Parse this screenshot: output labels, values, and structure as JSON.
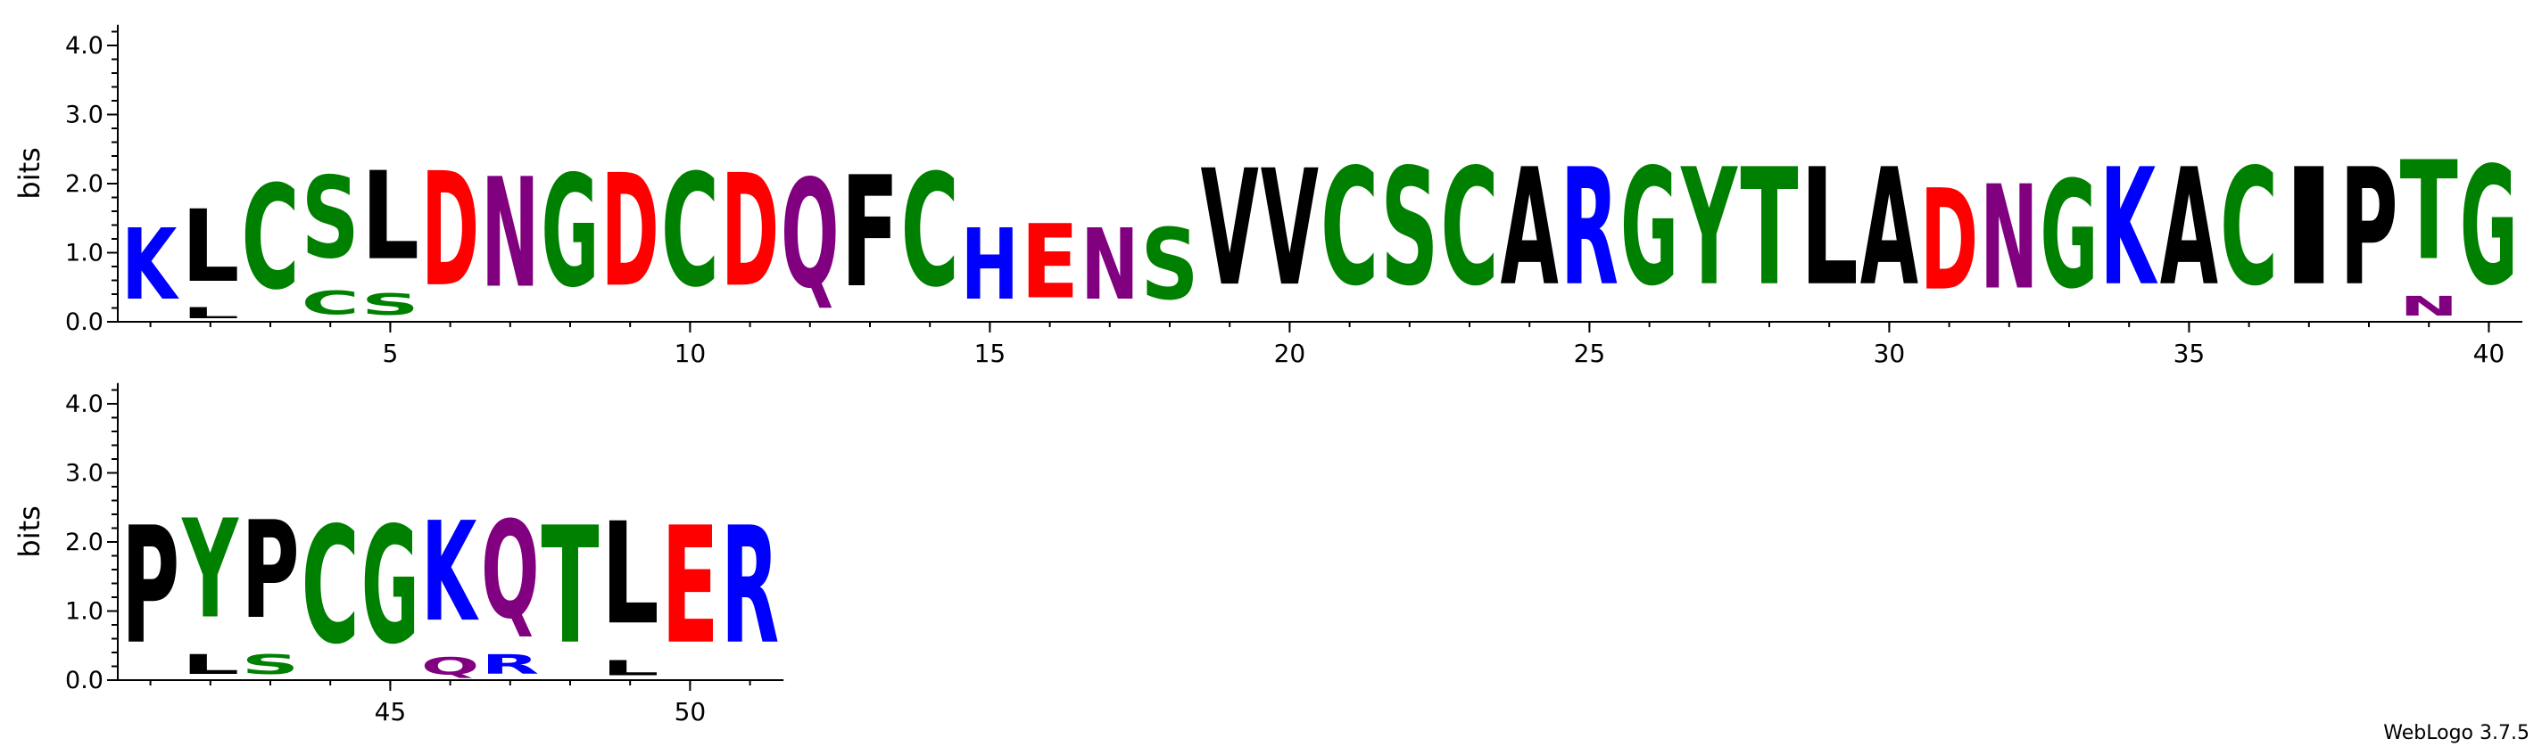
{
  "chart_data": {
    "type": "sequence-logo",
    "ylabel": "bits",
    "ylim": [
      0,
      4.3
    ],
    "yticks": [
      "0.0",
      "1.0",
      "2.0",
      "3.0",
      "4.0"
    ],
    "colors": {
      "C": "#008000",
      "G": "#008000",
      "S": "#008000",
      "T": "#008000",
      "Y": "#008000",
      "N": "#800080",
      "Q": "#800080",
      "D": "#ff0000",
      "E": "#ff0000",
      "K": "#0000ff",
      "R": "#0000ff",
      "H": "#0000ff",
      "L": "#000000",
      "A": "#000000",
      "F": "#000000",
      "V": "#000000",
      "I": "#000000",
      "P": "#000000",
      "W": "#000000",
      "M": "#000000"
    },
    "rows": [
      {
        "start": 1,
        "end": 40,
        "xticks": [
          "5",
          "10",
          "15",
          "20",
          "25",
          "30",
          "35",
          "40"
        ],
        "positions": [
          {
            "pos": 1,
            "letters": [
              {
                "l": "K",
                "h": 1.65
              }
            ]
          },
          {
            "pos": 2,
            "letters": [
              {
                "l": "L",
                "h": 0.25
              },
              {
                "l": "L",
                "h": 1.68
              }
            ]
          },
          {
            "pos": 3,
            "letters": [
              {
                "l": "C",
                "h": 2.42
              }
            ]
          },
          {
            "pos": 4,
            "letters": [
              {
                "l": "C",
                "h": 0.55
              },
              {
                "l": "S",
                "h": 1.9
              }
            ]
          },
          {
            "pos": 5,
            "letters": [
              {
                "l": "S",
                "h": 0.5
              },
              {
                "l": "L",
                "h": 2.05
              }
            ]
          },
          {
            "pos": 6,
            "letters": [
              {
                "l": "D",
                "h": 2.65
              }
            ]
          },
          {
            "pos": 7,
            "letters": [
              {
                "l": "N",
                "h": 2.55
              }
            ]
          },
          {
            "pos": 8,
            "letters": [
              {
                "l": "G",
                "h": 2.6
              }
            ]
          },
          {
            "pos": 9,
            "letters": [
              {
                "l": "D",
                "h": 2.62
              }
            ]
          },
          {
            "pos": 10,
            "letters": [
              {
                "l": "C",
                "h": 2.62
              }
            ]
          },
          {
            "pos": 11,
            "letters": [
              {
                "l": "D",
                "h": 2.62
              }
            ]
          },
          {
            "pos": 12,
            "letters": [
              {
                "l": "Q",
                "h": 2.52
              }
            ]
          },
          {
            "pos": 13,
            "letters": [
              {
                "l": "F",
                "h": 2.58
              }
            ]
          },
          {
            "pos": 14,
            "letters": [
              {
                "l": "C",
                "h": 2.62
              }
            ]
          },
          {
            "pos": 15,
            "letters": [
              {
                "l": "H",
                "h": 1.65
              }
            ]
          },
          {
            "pos": 16,
            "letters": [
              {
                "l": "E",
                "h": 1.72
              }
            ]
          },
          {
            "pos": 17,
            "letters": [
              {
                "l": "N",
                "h": 1.65
              }
            ]
          },
          {
            "pos": 18,
            "letters": [
              {
                "l": "S",
                "h": 1.65
              }
            ]
          },
          {
            "pos": 19,
            "letters": [
              {
                "l": "V",
                "h": 2.7
              }
            ]
          },
          {
            "pos": 20,
            "letters": [
              {
                "l": "V",
                "h": 2.7
              }
            ]
          },
          {
            "pos": 21,
            "letters": [
              {
                "l": "C",
                "h": 2.72
              }
            ]
          },
          {
            "pos": 22,
            "letters": [
              {
                "l": "S",
                "h": 2.72
              }
            ]
          },
          {
            "pos": 23,
            "letters": [
              {
                "l": "C",
                "h": 2.72
              }
            ]
          },
          {
            "pos": 24,
            "letters": [
              {
                "l": "A",
                "h": 2.72
              }
            ]
          },
          {
            "pos": 25,
            "letters": [
              {
                "l": "R",
                "h": 2.72
              }
            ]
          },
          {
            "pos": 26,
            "letters": [
              {
                "l": "G",
                "h": 2.72
              }
            ]
          },
          {
            "pos": 27,
            "letters": [
              {
                "l": "Y",
                "h": 2.72
              }
            ]
          },
          {
            "pos": 28,
            "letters": [
              {
                "l": "T",
                "h": 2.72
              }
            ]
          },
          {
            "pos": 29,
            "letters": [
              {
                "l": "L",
                "h": 2.72
              }
            ]
          },
          {
            "pos": 30,
            "letters": [
              {
                "l": "A",
                "h": 2.72
              }
            ]
          },
          {
            "pos": 31,
            "letters": [
              {
                "l": "D",
                "h": 2.35
              }
            ]
          },
          {
            "pos": 32,
            "letters": [
              {
                "l": "N",
                "h": 2.42
              }
            ]
          },
          {
            "pos": 33,
            "letters": [
              {
                "l": "G",
                "h": 2.5
              }
            ]
          },
          {
            "pos": 34,
            "letters": [
              {
                "l": "K",
                "h": 2.72
              }
            ]
          },
          {
            "pos": 35,
            "letters": [
              {
                "l": "A",
                "h": 2.72
              }
            ]
          },
          {
            "pos": 36,
            "letters": [
              {
                "l": "C",
                "h": 2.72
              }
            ]
          },
          {
            "pos": 37,
            "letters": [
              {
                "l": "I",
                "h": 2.72
              }
            ]
          },
          {
            "pos": 38,
            "letters": [
              {
                "l": "P",
                "h": 2.72
              }
            ]
          },
          {
            "pos": 39,
            "letters": [
              {
                "l": "N",
                "h": 0.45
              },
              {
                "l": "T",
                "h": 2.3
              }
            ]
          },
          {
            "pos": 40,
            "letters": [
              {
                "l": "G",
                "h": 2.75
              }
            ]
          }
        ]
      },
      {
        "start": 41,
        "end": 51,
        "xticks": [
          "45",
          "50"
        ],
        "positions": [
          {
            "pos": 41,
            "letters": [
              {
                "l": "P",
                "h": 2.72
              }
            ]
          },
          {
            "pos": 42,
            "letters": [
              {
                "l": "L",
                "h": 0.45
              },
              {
                "l": "Y",
                "h": 2.3
              }
            ]
          },
          {
            "pos": 43,
            "letters": [
              {
                "l": "S",
                "h": 0.45
              },
              {
                "l": "P",
                "h": 2.27
              }
            ]
          },
          {
            "pos": 44,
            "letters": [
              {
                "l": "C",
                "h": 2.72
              }
            ]
          },
          {
            "pos": 45,
            "letters": [
              {
                "l": "G",
                "h": 2.72
              }
            ]
          },
          {
            "pos": 46,
            "letters": [
              {
                "l": "Q",
                "h": 0.4
              },
              {
                "l": "K",
                "h": 2.32
              }
            ]
          },
          {
            "pos": 47,
            "letters": [
              {
                "l": "R",
                "h": 0.45
              },
              {
                "l": "Q",
                "h": 2.27
              }
            ]
          },
          {
            "pos": 48,
            "letters": [
              {
                "l": "T",
                "h": 2.72
              }
            ]
          },
          {
            "pos": 49,
            "letters": [
              {
                "l": "L",
                "h": 0.35
              },
              {
                "l": "L",
                "h": 2.37
              }
            ]
          },
          {
            "pos": 50,
            "letters": [
              {
                "l": "E",
                "h": 2.72
              }
            ]
          },
          {
            "pos": 51,
            "letters": [
              {
                "l": "R",
                "h": 2.72
              }
            ]
          }
        ]
      }
    ],
    "credit": "WebLogo 3.7.5"
  }
}
